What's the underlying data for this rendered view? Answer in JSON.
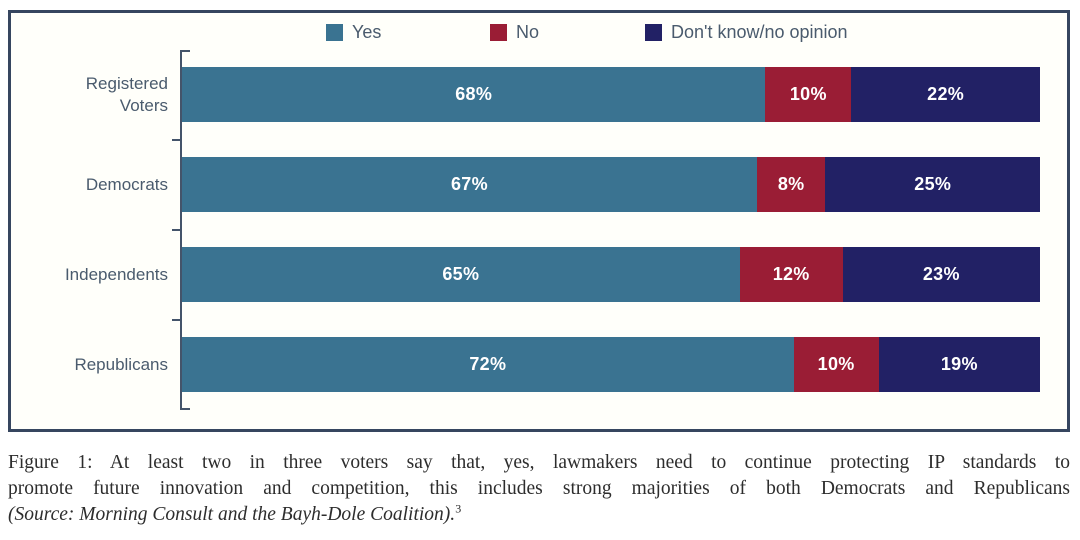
{
  "figure": {
    "background_color": "#fffffa",
    "border_color": "#36465f",
    "axis_color": "#44546a",
    "label_color": "#4a5b6d",
    "value_label_color": "#ffffff"
  },
  "chart_data": {
    "type": "bar",
    "orientation": "horizontal",
    "stacked": true,
    "title": "",
    "xlabel": "",
    "ylabel": "",
    "xlim": [
      0,
      100
    ],
    "grid": false,
    "legend_position": "top",
    "value_suffix": "%",
    "categories": [
      "Registered\nVoters",
      "Democrats",
      "Independents",
      "Republicans"
    ],
    "series": [
      {
        "name": "Yes",
        "color": "#3a7391",
        "values": [
          68,
          67,
          65,
          72
        ]
      },
      {
        "name": "No",
        "color": "#9a1d35",
        "values": [
          10,
          8,
          12,
          10
        ]
      },
      {
        "name": "Don't know/no opinion",
        "color": "#222165",
        "values": [
          22,
          25,
          23,
          19
        ]
      }
    ]
  },
  "caption": {
    "line1": "Figure 1: At least two in three voters say that, yes, lawmakers need to continue protecting IP standards to",
    "line2": "promote future innovation and competition, this includes strong majorities of both Democrats and Republicans",
    "source": "(Source: Morning Consult and the Bayh-Dole Coalition).",
    "footnote_mark": "3"
  }
}
